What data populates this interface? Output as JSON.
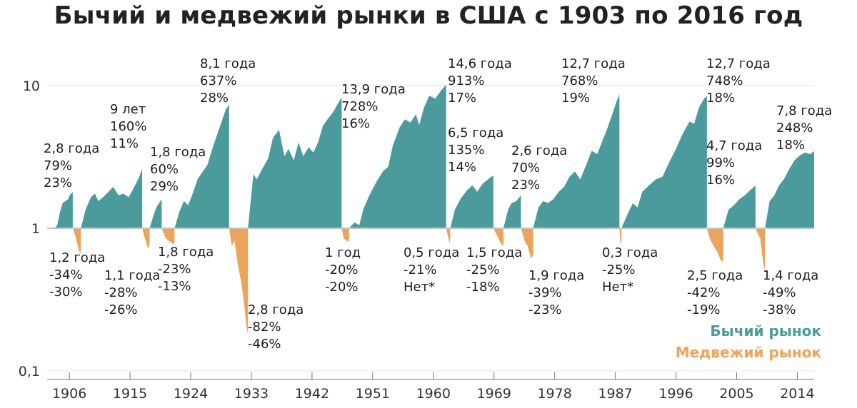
{
  "chart_data": {
    "type": "area",
    "title": "Бычий и медвежий рынки в США с 1903 по 2016 год",
    "y_scale": "log",
    "ylim": [
      0.1,
      14
    ],
    "xlim": [
      1902.7,
      2016.5
    ],
    "y_ticks": [
      {
        "value": 10,
        "label": "10"
      },
      {
        "value": 1,
        "label": "1"
      },
      {
        "value": 0.1,
        "label": "0,1"
      }
    ],
    "x_ticks": [
      {
        "value": 1906,
        "label": "1906"
      },
      {
        "value": 1915,
        "label": "1915"
      },
      {
        "value": 1924,
        "label": "1924"
      },
      {
        "value": 1933,
        "label": "1933"
      },
      {
        "value": 1942,
        "label": "1942"
      },
      {
        "value": 1951,
        "label": "1951"
      },
      {
        "value": 1960,
        "label": "1960"
      },
      {
        "value": 1969,
        "label": "1969"
      },
      {
        "value": 1978,
        "label": "1978"
      },
      {
        "value": 1987,
        "label": "1987"
      },
      {
        "value": 1996,
        "label": "1996"
      },
      {
        "value": 2005,
        "label": "2005"
      },
      {
        "value": 2014,
        "label": "2014"
      }
    ],
    "legend": [
      {
        "name": "Бычий рынок",
        "color": "#4b9b9d"
      },
      {
        "name": "Медвежий рынок",
        "color": "#eea35b"
      }
    ],
    "colors": {
      "bull": "#4b9b9d",
      "bear": "#eea35b",
      "baseline": "#b7c9c9",
      "grid": "#e3e3e3",
      "axis": "#777777"
    },
    "bull_markets": [
      {
        "start": 1903.8,
        "end": 1906.5,
        "points": [
          [
            1903.8,
            1
          ],
          [
            1904.2,
            1.05
          ],
          [
            1904.6,
            1.3
          ],
          [
            1905.0,
            1.5
          ],
          [
            1905.4,
            1.55
          ],
          [
            1905.8,
            1.6
          ],
          [
            1906.1,
            1.72
          ],
          [
            1906.5,
            1.79
          ]
        ],
        "labels": {
          "duration": "2,8 года",
          "gain": "79%",
          "annual": "23%"
        }
      },
      {
        "start": 1907.7,
        "end": 1916.8,
        "points": [
          [
            1907.7,
            1
          ],
          [
            1908.4,
            1.35
          ],
          [
            1909.2,
            1.65
          ],
          [
            1909.8,
            1.75
          ],
          [
            1910.3,
            1.55
          ],
          [
            1911,
            1.65
          ],
          [
            1911.8,
            1.8
          ],
          [
            1912.5,
            1.95
          ],
          [
            1913.3,
            1.7
          ],
          [
            1914,
            1.75
          ],
          [
            1914.8,
            1.65
          ],
          [
            1915.5,
            1.9
          ],
          [
            1916.2,
            2.2
          ],
          [
            1916.8,
            2.6
          ]
        ],
        "labels": {
          "duration": "9 лет",
          "gain": "160%",
          "annual": "11%"
        }
      },
      {
        "start": 1917.9,
        "end": 1919.7,
        "points": [
          [
            1917.9,
            1
          ],
          [
            1918.4,
            1.2
          ],
          [
            1918.9,
            1.4
          ],
          [
            1919.3,
            1.5
          ],
          [
            1919.7,
            1.6
          ]
        ],
        "labels": {
          "duration": "1,8 года",
          "gain": "60%",
          "annual": "29%"
        }
      },
      {
        "start": 1921.6,
        "end": 1929.7,
        "points": [
          [
            1921.6,
            1
          ],
          [
            1922.3,
            1.3
          ],
          [
            1923,
            1.55
          ],
          [
            1923.6,
            1.45
          ],
          [
            1924.3,
            1.75
          ],
          [
            1925,
            2.2
          ],
          [
            1925.8,
            2.5
          ],
          [
            1926.5,
            2.8
          ],
          [
            1927.2,
            3.6
          ],
          [
            1927.9,
            4.5
          ],
          [
            1928.6,
            5.6
          ],
          [
            1929.2,
            6.8
          ],
          [
            1929.7,
            7.37
          ]
        ],
        "labels": {
          "duration": "8,1 года",
          "gain": "637%",
          "annual": "28%"
        }
      },
      {
        "start": 1932.5,
        "end": 1946.4,
        "points": [
          [
            1932.5,
            1
          ],
          [
            1933.3,
            2.4
          ],
          [
            1933.8,
            2.2
          ],
          [
            1934.6,
            2.6
          ],
          [
            1935.5,
            3.1
          ],
          [
            1936.2,
            4.3
          ],
          [
            1937.1,
            4.9
          ],
          [
            1937.9,
            3.2
          ],
          [
            1938.5,
            3.6
          ],
          [
            1939.3,
            3.0
          ],
          [
            1940,
            4.0
          ],
          [
            1940.7,
            3.2
          ],
          [
            1941.5,
            3.7
          ],
          [
            1942.2,
            3.4
          ],
          [
            1942.9,
            4.0
          ],
          [
            1943.6,
            5.2
          ],
          [
            1944.3,
            5.8
          ],
          [
            1945.2,
            6.6
          ],
          [
            1946.0,
            7.7
          ],
          [
            1946.4,
            8.28
          ]
        ],
        "labels": {
          "duration": "13,9 года",
          "gain": "728%",
          "annual": "16%"
        }
      },
      {
        "start": 1947.5,
        "end": 1961.9,
        "points": [
          [
            1947.5,
            1
          ],
          [
            1948.3,
            1.1
          ],
          [
            1949,
            1.05
          ],
          [
            1949.6,
            1.35
          ],
          [
            1950.5,
            1.7
          ],
          [
            1951.5,
            2.1
          ],
          [
            1952.5,
            2.5
          ],
          [
            1953.3,
            2.7
          ],
          [
            1954,
            3.8
          ],
          [
            1955,
            5.1
          ],
          [
            1955.8,
            5.8
          ],
          [
            1956.6,
            5.5
          ],
          [
            1957.4,
            6.3
          ],
          [
            1957.9,
            5.3
          ],
          [
            1958.6,
            7.0
          ],
          [
            1959.4,
            8.5
          ],
          [
            1960.3,
            8.1
          ],
          [
            1961.2,
            9.3
          ],
          [
            1961.9,
            10.13
          ]
        ],
        "labels": {
          "duration": "14,6 года",
          "gain": "913%",
          "annual": "17%"
        }
      },
      {
        "start": 1962.5,
        "end": 1968.9,
        "points": [
          [
            1962.5,
            1
          ],
          [
            1963.2,
            1.35
          ],
          [
            1964,
            1.6
          ],
          [
            1965,
            1.85
          ],
          [
            1965.8,
            2.0
          ],
          [
            1966.5,
            1.8
          ],
          [
            1967.3,
            2.05
          ],
          [
            1968.1,
            2.2
          ],
          [
            1968.9,
            2.35
          ]
        ],
        "labels": {
          "duration": "6,5 года",
          "gain": "135%",
          "annual": "14%"
        }
      },
      {
        "start": 1970.4,
        "end": 1973.0,
        "points": [
          [
            1970.4,
            1
          ],
          [
            1971.1,
            1.35
          ],
          [
            1971.6,
            1.5
          ],
          [
            1972.3,
            1.55
          ],
          [
            1973.0,
            1.7
          ]
        ],
        "labels": {
          "duration": "2,6 года",
          "gain": "70%",
          "annual": "23%"
        }
      },
      {
        "start": 1974.8,
        "end": 1987.6,
        "points": [
          [
            1974.8,
            1
          ],
          [
            1975.6,
            1.4
          ],
          [
            1976.3,
            1.55
          ],
          [
            1977,
            1.5
          ],
          [
            1977.8,
            1.6
          ],
          [
            1978.6,
            1.8
          ],
          [
            1979.4,
            1.95
          ],
          [
            1980.2,
            2.3
          ],
          [
            1981,
            2.5
          ],
          [
            1981.8,
            2.2
          ],
          [
            1982.7,
            2.8
          ],
          [
            1983.5,
            3.5
          ],
          [
            1984.3,
            3.3
          ],
          [
            1985,
            4.0
          ],
          [
            1985.8,
            5.0
          ],
          [
            1986.6,
            6.4
          ],
          [
            1987.2,
            7.8
          ],
          [
            1987.6,
            8.68
          ]
        ],
        "labels": {
          "duration": "12,7 года",
          "gain": "768%",
          "annual": "19%"
        }
      },
      {
        "start": 1987.9,
        "end": 2000.6,
        "points": [
          [
            1987.9,
            1
          ],
          [
            1988.8,
            1.25
          ],
          [
            1989.6,
            1.5
          ],
          [
            1990.3,
            1.4
          ],
          [
            1991,
            1.8
          ],
          [
            1992,
            2.0
          ],
          [
            1993,
            2.2
          ],
          [
            1994,
            2.3
          ],
          [
            1995,
            2.9
          ],
          [
            1996,
            3.6
          ],
          [
            1997,
            4.6
          ],
          [
            1998,
            5.6
          ],
          [
            1998.7,
            5.4
          ],
          [
            1999.4,
            7.0
          ],
          [
            2000.1,
            8.0
          ],
          [
            2000.6,
            8.48
          ]
        ],
        "labels": {
          "duration": "12,7 года",
          "gain": "748%",
          "annual": "18%"
        }
      },
      {
        "start": 2003.0,
        "end": 2007.8,
        "points": [
          [
            2003.0,
            1
          ],
          [
            2003.8,
            1.35
          ],
          [
            2004.6,
            1.45
          ],
          [
            2005.4,
            1.6
          ],
          [
            2006.2,
            1.7
          ],
          [
            2007,
            1.85
          ],
          [
            2007.8,
            1.99
          ]
        ],
        "labels": {
          "duration": "4,7 года",
          "gain": "99%",
          "annual": "16%"
        }
      },
      {
        "start": 2009.2,
        "end": 2016.5,
        "points": [
          [
            2009.2,
            1
          ],
          [
            2009.9,
            1.55
          ],
          [
            2010.6,
            1.7
          ],
          [
            2011.3,
            2.0
          ],
          [
            2012,
            2.2
          ],
          [
            2012.8,
            2.6
          ],
          [
            2013.6,
            3.0
          ],
          [
            2014.4,
            3.25
          ],
          [
            2015.2,
            3.4
          ],
          [
            2015.9,
            3.3
          ],
          [
            2016.5,
            3.48
          ]
        ],
        "labels": {
          "duration": "7,8 года",
          "gain": "248%",
          "annual": "18%"
        }
      }
    ],
    "bear_markets": [
      {
        "start": 1906.5,
        "end": 1907.7,
        "points": [
          [
            1906.5,
            1
          ],
          [
            1906.9,
            0.88
          ],
          [
            1907.3,
            0.74
          ],
          [
            1907.6,
            0.66
          ],
          [
            1907.7,
            0.7
          ]
        ],
        "labels": {
          "duration": "1,2 года",
          "loss": "-34%",
          "annual": "-30%"
        }
      },
      {
        "start": 1916.8,
        "end": 1917.9,
        "points": [
          [
            1916.8,
            1
          ],
          [
            1917.2,
            0.85
          ],
          [
            1917.6,
            0.74
          ],
          [
            1917.8,
            0.72
          ],
          [
            1917.9,
            0.8
          ]
        ],
        "labels": {
          "duration": "1,1 года",
          "loss": "-28%",
          "annual": "-26%"
        }
      },
      {
        "start": 1919.7,
        "end": 1921.6,
        "points": [
          [
            1919.7,
            1
          ],
          [
            1920.3,
            0.85
          ],
          [
            1921.0,
            0.8
          ],
          [
            1921.5,
            0.77
          ],
          [
            1921.6,
            0.82
          ]
        ],
        "labels": {
          "duration": "1,8 года",
          "loss": "-23%",
          "annual": "-13%"
        }
      },
      {
        "start": 1929.7,
        "end": 1932.5,
        "points": [
          [
            1929.7,
            1
          ],
          [
            1930.1,
            0.75
          ],
          [
            1930.5,
            0.82
          ],
          [
            1931.0,
            0.55
          ],
          [
            1931.5,
            0.42
          ],
          [
            1931.9,
            0.3
          ],
          [
            1932.3,
            0.2
          ],
          [
            1932.5,
            0.18
          ]
        ],
        "labels": {
          "duration": "2,8 года",
          "loss": "-82%",
          "annual": "-46%"
        }
      },
      {
        "start": 1946.4,
        "end": 1947.5,
        "points": [
          [
            1946.4,
            1
          ],
          [
            1946.7,
            0.85
          ],
          [
            1947.1,
            0.82
          ],
          [
            1947.4,
            0.8
          ],
          [
            1947.5,
            0.86
          ]
        ],
        "labels": {
          "duration": "1 год",
          "loss": "-20%",
          "annual": "-20%"
        }
      },
      {
        "start": 1961.9,
        "end": 1962.5,
        "points": [
          [
            1961.9,
            1
          ],
          [
            1962.2,
            0.87
          ],
          [
            1962.4,
            0.79
          ],
          [
            1962.5,
            0.84
          ]
        ],
        "labels": {
          "duration": "0,5 года",
          "loss": "-21%",
          "annual": "Нет*"
        }
      },
      {
        "start": 1968.9,
        "end": 1970.4,
        "points": [
          [
            1968.9,
            1
          ],
          [
            1969.4,
            0.9
          ],
          [
            1969.9,
            0.8
          ],
          [
            1970.3,
            0.75
          ],
          [
            1970.4,
            0.8
          ]
        ],
        "labels": {
          "duration": "1,5 года",
          "loss": "-25%",
          "annual": "-18%"
        }
      },
      {
        "start": 1973.0,
        "end": 1974.8,
        "points": [
          [
            1973.0,
            1
          ],
          [
            1973.5,
            0.82
          ],
          [
            1974.0,
            0.75
          ],
          [
            1974.5,
            0.61
          ],
          [
            1974.8,
            0.65
          ]
        ],
        "labels": {
          "duration": "1,9 года",
          "loss": "-39%",
          "annual": "-23%"
        }
      },
      {
        "start": 1987.6,
        "end": 1987.9,
        "points": [
          [
            1987.6,
            1
          ],
          [
            1987.75,
            0.8
          ],
          [
            1987.85,
            0.75
          ],
          [
            1987.9,
            0.82
          ]
        ],
        "labels": {
          "duration": "0,3 года",
          "loss": "-25%",
          "annual": "Нет*"
        }
      },
      {
        "start": 2000.6,
        "end": 2003.0,
        "points": [
          [
            2000.6,
            1
          ],
          [
            2001.0,
            0.85
          ],
          [
            2001.4,
            0.78
          ],
          [
            2001.8,
            0.72
          ],
          [
            2002.2,
            0.68
          ],
          [
            2002.6,
            0.6
          ],
          [
            2003.0,
            0.58
          ]
        ],
        "labels": {
          "duration": "2,5 года",
          "loss": "-42%",
          "annual": "-19%"
        }
      },
      {
        "start": 2007.8,
        "end": 2009.2,
        "points": [
          [
            2007.8,
            1
          ],
          [
            2008.2,
            0.9
          ],
          [
            2008.5,
            0.85
          ],
          [
            2008.8,
            0.65
          ],
          [
            2009.1,
            0.51
          ],
          [
            2009.2,
            0.55
          ]
        ],
        "labels": {
          "duration": "1,4 года",
          "loss": "-49%",
          "annual": "-38%"
        }
      }
    ]
  }
}
